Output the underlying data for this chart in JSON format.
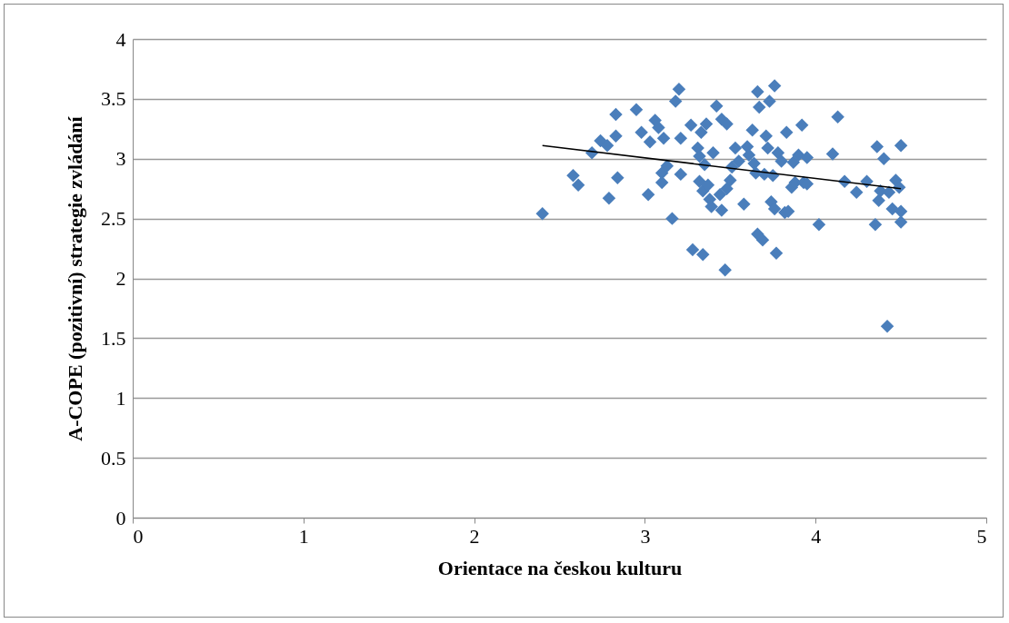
{
  "chart_data": {
    "type": "scatter",
    "xlabel": "Orientace na českou kulturu",
    "ylabel": "A-COPE (pozitivní) strategie zvládání",
    "xlim": [
      0,
      5
    ],
    "xticks": [
      0,
      1,
      2,
      3,
      4,
      5
    ],
    "ylim": [
      0,
      4
    ],
    "yticks": [
      0,
      0.5,
      1,
      1.5,
      2,
      2.5,
      3,
      3.5,
      4
    ],
    "grid": "y",
    "marker": "diamond",
    "series": [
      {
        "color": "#4a7ebb",
        "x": [
          2.4,
          2.58,
          2.61,
          2.69,
          2.74,
          2.78,
          2.79,
          2.83,
          2.83,
          2.84,
          2.95,
          2.98,
          3.02,
          3.03,
          3.06,
          3.08,
          3.1,
          3.1,
          3.11,
          3.13,
          3.16,
          3.18,
          3.2,
          3.21,
          3.21,
          3.27,
          3.28,
          3.31,
          3.32,
          3.32,
          3.33,
          3.34,
          3.34,
          3.35,
          3.36,
          3.37,
          3.38,
          3.39,
          3.4,
          3.42,
          3.44,
          3.45,
          3.45,
          3.47,
          3.48,
          3.48,
          3.5,
          3.51,
          3.53,
          3.55,
          3.58,
          3.6,
          3.61,
          3.63,
          3.64,
          3.65,
          3.66,
          3.66,
          3.67,
          3.69,
          3.7,
          3.71,
          3.72,
          3.73,
          3.74,
          3.75,
          3.76,
          3.76,
          3.77,
          3.78,
          3.8,
          3.82,
          3.83,
          3.84,
          3.86,
          3.87,
          3.88,
          3.9,
          3.92,
          3.93,
          3.95,
          3.95,
          4.02,
          4.1,
          4.13,
          4.17,
          4.24,
          4.3,
          4.35,
          4.36,
          4.37,
          4.38,
          4.4,
          4.42,
          4.43,
          4.45,
          4.47,
          4.49,
          4.5,
          4.5,
          4.5
        ],
        "values": [
          2.54,
          2.86,
          2.78,
          3.05,
          3.15,
          3.11,
          2.67,
          3.19,
          3.37,
          2.84,
          3.41,
          3.22,
          2.7,
          3.14,
          3.32,
          3.26,
          2.88,
          2.8,
          3.17,
          2.94,
          2.5,
          3.48,
          3.58,
          2.87,
          3.17,
          3.28,
          2.24,
          3.09,
          2.81,
          3.02,
          3.22,
          2.2,
          2.73,
          2.95,
          3.29,
          2.78,
          2.66,
          2.6,
          3.05,
          3.44,
          2.7,
          3.33,
          2.57,
          2.07,
          3.29,
          2.75,
          2.82,
          2.93,
          3.09,
          2.98,
          2.62,
          3.1,
          3.03,
          3.24,
          2.96,
          2.88,
          3.56,
          2.37,
          3.43,
          2.32,
          2.87,
          3.19,
          3.09,
          3.48,
          2.64,
          2.86,
          3.61,
          2.58,
          2.21,
          3.05,
          2.98,
          2.55,
          3.22,
          2.56,
          2.76,
          2.97,
          2.8,
          3.03,
          3.28,
          2.8,
          3.01,
          2.79,
          2.45,
          3.04,
          3.35,
          2.81,
          2.72,
          2.81,
          2.45,
          3.1,
          2.65,
          2.73,
          3.0,
          1.6,
          2.72,
          2.58,
          2.82,
          2.76,
          2.56,
          2.47,
          3.11
        ]
      },
      {
        "type": "line",
        "marker": "none",
        "color": "#000000",
        "x": [
          2.4,
          4.5
        ],
        "values": [
          3.11,
          2.75
        ]
      }
    ]
  }
}
